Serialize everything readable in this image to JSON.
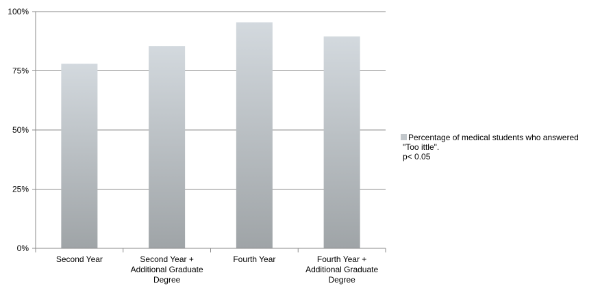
{
  "chart_data": {
    "type": "bar",
    "categories": [
      [
        "Second Year"
      ],
      [
        "Second Year +",
        "Additional Graduate",
        "Degree"
      ],
      [
        "Fourth Year"
      ],
      [
        "Fourth Year +",
        "Additional Graduate",
        "Degree"
      ]
    ],
    "values": [
      78,
      85.5,
      95.5,
      89.5
    ],
    "ylim": [
      0,
      100
    ],
    "yticks": [
      "0%",
      "25%",
      "50%",
      "75%",
      "100%"
    ],
    "ytick_values": [
      0,
      25,
      50,
      75,
      100
    ],
    "grid": true,
    "legend_position": "right",
    "series": [
      {
        "name_lines": [
          "Percentage of medical students who answered",
          "\"Too ittle\".",
          "p< 0.05"
        ],
        "color_top": "#d3d9de",
        "color_bottom": "#9fa4a7"
      }
    ],
    "colors": {
      "axis": "#8a8a8a",
      "grid": "#8a8a8a"
    }
  }
}
